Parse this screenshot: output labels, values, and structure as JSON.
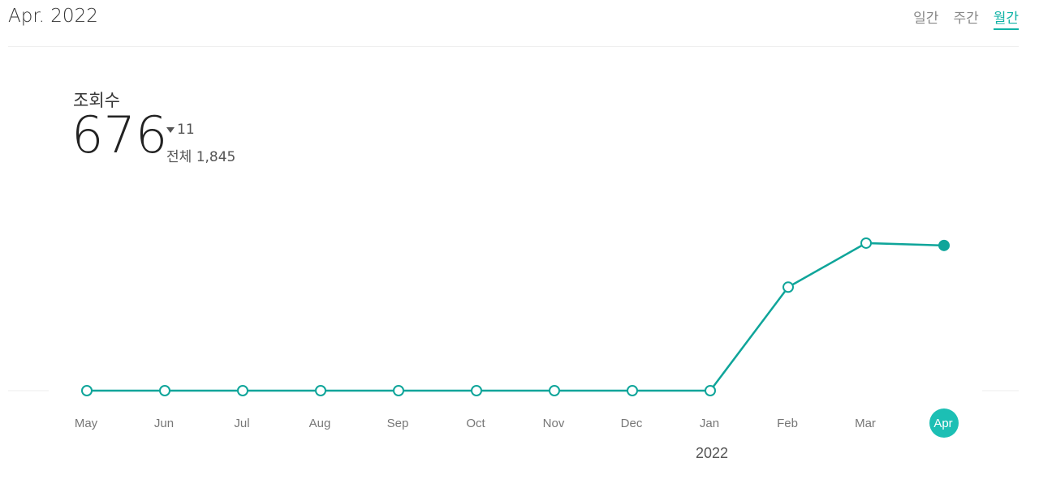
{
  "header": {
    "title": "Apr. 2022",
    "tabs": [
      "일간",
      "주간",
      "월간"
    ],
    "active_tab": 2
  },
  "summary": {
    "label": "조회수",
    "value": "676",
    "change": "11",
    "total_label": "전체",
    "total": "1,845"
  },
  "chart_data": {
    "type": "line",
    "categories": [
      "May",
      "Jun",
      "Jul",
      "Aug",
      "Sep",
      "Oct",
      "Nov",
      "Dec",
      "Jan",
      "Feb",
      "Mar",
      "Apr"
    ],
    "values": [
      0,
      0,
      0,
      0,
      0,
      0,
      0,
      0,
      0,
      482,
      687,
      676
    ],
    "color": "#0fa59a",
    "ylim": [
      0,
      800
    ],
    "year_label": {
      "text": "2022",
      "category": 8
    },
    "highlight": 11
  }
}
